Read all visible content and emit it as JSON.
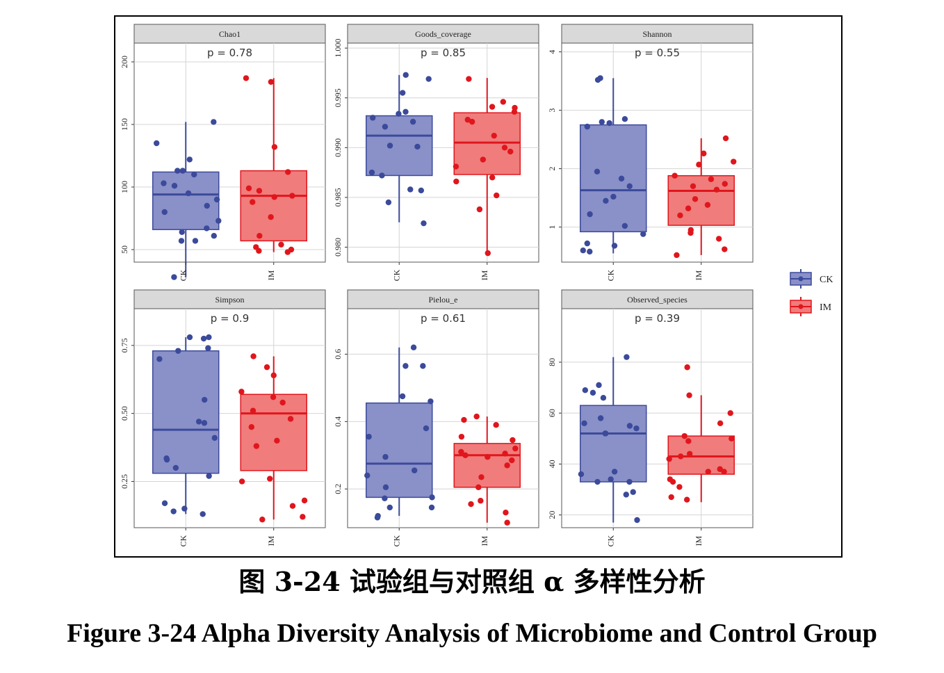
{
  "figure": {
    "caption_cn": "图 3-24  试验组与对照组 α 多样性分析",
    "caption_en": "Figure 3-24 Alpha Diversity Analysis of Microbiome and Control Group"
  },
  "legend": {
    "placement": "right",
    "items": [
      {
        "label": "CK",
        "fill": "#8a90c8",
        "stroke": "#3b4a9a"
      },
      {
        "label": "IM",
        "fill": "#f07c7c",
        "stroke": "#e0161c"
      }
    ]
  },
  "colors": {
    "ck_fill": "#8a90c8",
    "ck_line": "#3b4a9a",
    "ck_point": "#3b4a9a",
    "im_fill": "#f07c7c",
    "im_line": "#e0161c",
    "im_point": "#e0161c",
    "panel_bg": "#ffffff",
    "grid": "#d4d4d4",
    "strip_bg": "#d9d9d9"
  },
  "chart_data": [
    {
      "type": "box",
      "title": "Chao1",
      "pvalue": "p = 0.78",
      "categories": [
        "CK",
        "IM"
      ],
      "ylim": [
        40,
        215
      ],
      "yticks": [
        50,
        100,
        150,
        200
      ],
      "ytick_labels": [
        "50",
        "100",
        "150",
        "200"
      ],
      "series": [
        {
          "name": "CK",
          "whisker_low": 28,
          "q1": 66,
          "median": 94,
          "q3": 112,
          "whisker_high": 152,
          "points": [
            152,
            135,
            122,
            113,
            113,
            110,
            103,
            101,
            95,
            90,
            85,
            80,
            73,
            67,
            64,
            61,
            57,
            57,
            28
          ]
        },
        {
          "name": "IM",
          "whisker_low": 48,
          "q1": 57,
          "median": 93,
          "q3": 113,
          "whisker_high": 187,
          "points": [
            187,
            184,
            132,
            112,
            99,
            97,
            93,
            92,
            88,
            76,
            61,
            54,
            52,
            50,
            49,
            48
          ]
        }
      ]
    },
    {
      "type": "box",
      "title": "Goods_coverage",
      "pvalue": "p = 0.85",
      "categories": [
        "CK",
        "IM"
      ],
      "ylim": [
        0.9785,
        1.0005
      ],
      "yticks": [
        0.98,
        0.985,
        0.99,
        0.995,
        1.0
      ],
      "ytick_labels": [
        "0.980",
        "0.985",
        "0.990",
        "0.995",
        "1.000"
      ],
      "series": [
        {
          "name": "CK",
          "whisker_low": 0.9825,
          "q1": 0.9872,
          "median": 0.9912,
          "q3": 0.9932,
          "whisker_high": 0.9973,
          "points": [
            0.9973,
            0.9969,
            0.9955,
            0.9936,
            0.9934,
            0.993,
            0.9926,
            0.9921,
            0.9902,
            0.9901,
            0.9875,
            0.9872,
            0.9858,
            0.9857,
            0.9845,
            0.9824
          ]
        },
        {
          "name": "IM",
          "whisker_low": 0.9794,
          "q1": 0.9873,
          "median": 0.9905,
          "q3": 0.9935,
          "whisker_high": 0.997,
          "points": [
            0.9969,
            0.9946,
            0.9941,
            0.994,
            0.9936,
            0.9928,
            0.9926,
            0.9912,
            0.99,
            0.9896,
            0.9888,
            0.9881,
            0.987,
            0.9866,
            0.9852,
            0.9838,
            0.9794
          ]
        }
      ]
    },
    {
      "type": "box",
      "title": "Shannon",
      "pvalue": "p = 0.55",
      "categories": [
        "CK",
        "IM"
      ],
      "ylim": [
        0.4,
        4.15
      ],
      "yticks": [
        1,
        2,
        3,
        4
      ],
      "ytick_labels": [
        "1",
        "2",
        "3",
        "4"
      ],
      "series": [
        {
          "name": "CK",
          "whisker_low": 0.55,
          "q1": 0.92,
          "median": 1.63,
          "q3": 2.75,
          "whisker_high": 3.55,
          "points": [
            3.55,
            3.52,
            2.85,
            2.8,
            2.78,
            2.72,
            1.95,
            1.83,
            1.7,
            1.52,
            1.45,
            1.22,
            1.02,
            0.88,
            0.72,
            0.68,
            0.6,
            0.58
          ]
        },
        {
          "name": "IM",
          "whisker_low": 0.52,
          "q1": 1.03,
          "median": 1.62,
          "q3": 1.88,
          "whisker_high": 2.52,
          "points": [
            2.52,
            2.26,
            2.12,
            2.07,
            1.88,
            1.82,
            1.74,
            1.7,
            1.64,
            1.48,
            1.38,
            1.32,
            1.2,
            0.95,
            0.9,
            0.8,
            0.62,
            0.52
          ]
        }
      ]
    },
    {
      "type": "box",
      "title": "Simpson",
      "pvalue": "p = 0.9",
      "categories": [
        "CK",
        "IM"
      ],
      "ylim": [
        0.08,
        0.885
      ],
      "yticks": [
        0.25,
        0.5,
        0.75
      ],
      "ytick_labels": [
        "0.25",
        "0.50",
        "0.75"
      ],
      "series": [
        {
          "name": "CK",
          "whisker_low": 0.13,
          "q1": 0.28,
          "median": 0.44,
          "q3": 0.73,
          "whisker_high": 0.78,
          "points": [
            0.78,
            0.78,
            0.775,
            0.74,
            0.73,
            0.7,
            0.55,
            0.47,
            0.465,
            0.41,
            0.335,
            0.33,
            0.3,
            0.27,
            0.17,
            0.15,
            0.14,
            0.13
          ]
        },
        {
          "name": "IM",
          "whisker_low": 0.11,
          "q1": 0.29,
          "median": 0.5,
          "q3": 0.57,
          "whisker_high": 0.71,
          "points": [
            0.71,
            0.67,
            0.64,
            0.58,
            0.56,
            0.54,
            0.51,
            0.48,
            0.45,
            0.4,
            0.38,
            0.26,
            0.25,
            0.18,
            0.16,
            0.12,
            0.11
          ]
        }
      ]
    },
    {
      "type": "box",
      "title": "Pielou_e",
      "pvalue": "p = 0.61",
      "categories": [
        "CK",
        "IM"
      ],
      "ylim": [
        0.085,
        0.735
      ],
      "yticks": [
        0.2,
        0.4,
        0.6
      ],
      "ytick_labels": [
        "0.2",
        "0.4",
        "0.6"
      ],
      "series": [
        {
          "name": "CK",
          "whisker_low": 0.12,
          "q1": 0.175,
          "median": 0.275,
          "q3": 0.455,
          "whisker_high": 0.62,
          "points": [
            0.62,
            0.565,
            0.565,
            0.475,
            0.46,
            0.38,
            0.355,
            0.295,
            0.255,
            0.24,
            0.205,
            0.175,
            0.172,
            0.145,
            0.145,
            0.12,
            0.115
          ]
        },
        {
          "name": "IM",
          "whisker_low": 0.1,
          "q1": 0.205,
          "median": 0.3,
          "q3": 0.335,
          "whisker_high": 0.415,
          "points": [
            0.415,
            0.405,
            0.39,
            0.355,
            0.345,
            0.32,
            0.31,
            0.305,
            0.3,
            0.295,
            0.285,
            0.27,
            0.235,
            0.205,
            0.165,
            0.155,
            0.13,
            0.1
          ]
        }
      ]
    },
    {
      "type": "box",
      "title": "Observed_species",
      "pvalue": "p = 0.39",
      "categories": [
        "CK",
        "IM"
      ],
      "ylim": [
        15,
        101
      ],
      "yticks": [
        20,
        40,
        60,
        80
      ],
      "ytick_labels": [
        "20",
        "40",
        "60",
        "80"
      ],
      "series": [
        {
          "name": "CK",
          "whisker_low": 17,
          "q1": 33,
          "median": 52,
          "q3": 63,
          "whisker_high": 82,
          "points": [
            82,
            71,
            69,
            68,
            66,
            58,
            56,
            55,
            54,
            52,
            52,
            37,
            36,
            34,
            33,
            33,
            29,
            28,
            18
          ]
        },
        {
          "name": "IM",
          "whisker_low": 25,
          "q1": 36,
          "median": 43,
          "q3": 51,
          "whisker_high": 67,
          "points": [
            78,
            67,
            60,
            56,
            51,
            50,
            49,
            44,
            43,
            42,
            38,
            37,
            37,
            34,
            33,
            31,
            27,
            26
          ]
        }
      ]
    }
  ]
}
